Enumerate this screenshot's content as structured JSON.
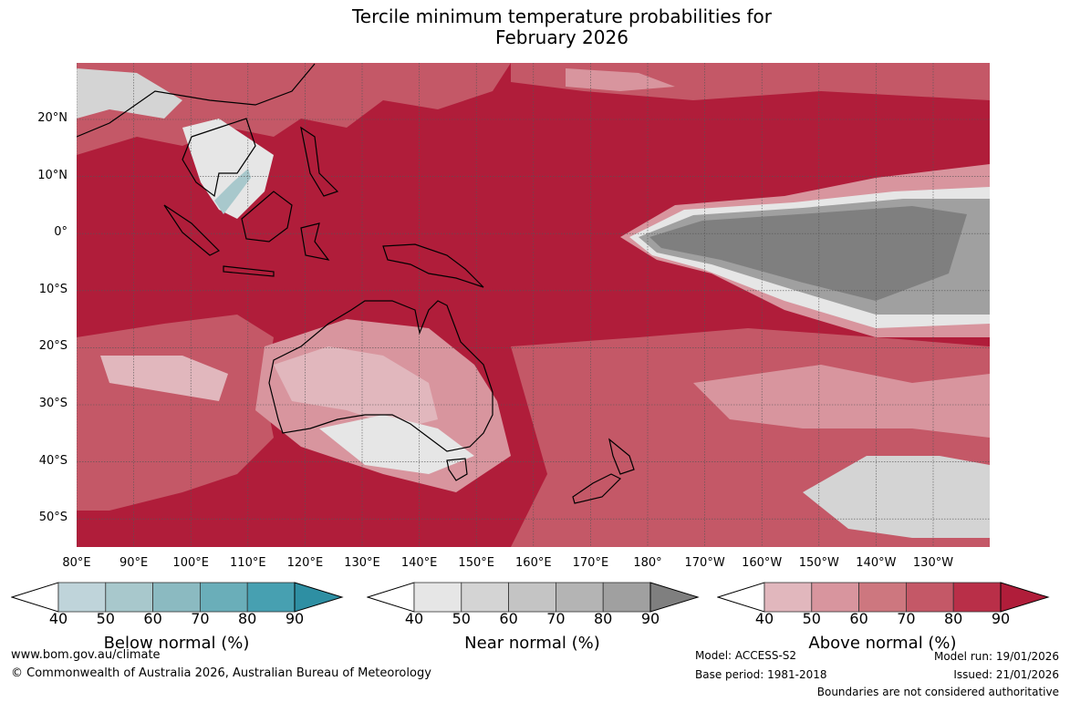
{
  "title_line1": "Tercile minimum temperature probabilities for",
  "title_line2": "February 2026",
  "lon_labels": [
    "80°E",
    "90°E",
    "100°E",
    "110°E",
    "120°E",
    "130°E",
    "140°E",
    "150°E",
    "160°E",
    "170°E",
    "180°",
    "170°W",
    "160°W",
    "150°W",
    "140°W",
    "130°W"
  ],
  "lat_labels": [
    "20°N",
    "10°N",
    "0°",
    "10°S",
    "20°S",
    "30°S",
    "40°S",
    "50°S"
  ],
  "legends": [
    {
      "title": "Below normal (%)",
      "ticks": [
        "40",
        "50",
        "60",
        "70",
        "80",
        "90"
      ],
      "colors": [
        "#ffffff",
        "#bfd4da",
        "#a8c8cc",
        "#8bbac1",
        "#6aaeb9",
        "#47a0b1",
        "#2e8fa3"
      ]
    },
    {
      "title": "Near normal (%)",
      "ticks": [
        "40",
        "50",
        "60",
        "70",
        "80",
        "90"
      ],
      "colors": [
        "#ffffff",
        "#e6e6e6",
        "#d4d4d4",
        "#c4c4c4",
        "#b4b4b4",
        "#a0a0a0",
        "#7f7f7f"
      ]
    },
    {
      "title": "Above normal (%)",
      "ticks": [
        "40",
        "50",
        "60",
        "70",
        "80",
        "90"
      ],
      "colors": [
        "#ffffff",
        "#e1b7bd",
        "#d8959e",
        "#cd777f",
        "#c45867",
        "#b92f48",
        "#b01d3a"
      ]
    }
  ],
  "footer": {
    "url": "www.bom.gov.au/climate",
    "copyright": "© Commonwealth of Australia 2026, Australian Bureau of Meteorology",
    "model": "Model: ACCESS-S2",
    "base_period": "Base period: 1981-2018",
    "model_run": "Model run: 19/01/2026",
    "issued": "Issued: 21/01/2026",
    "disclaimer": "Boundaries are not considered authoritative"
  }
}
